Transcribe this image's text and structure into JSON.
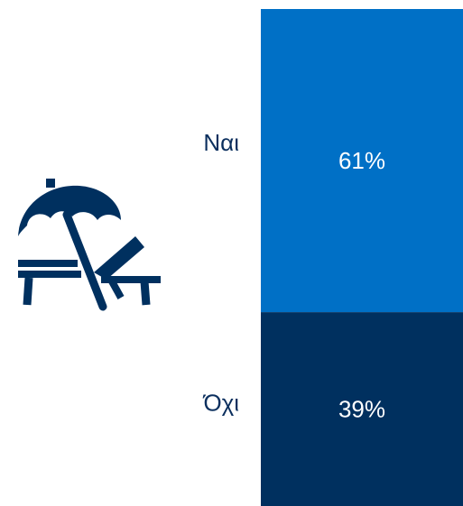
{
  "chart_data": {
    "type": "bar",
    "layout": "stacked-vertical-100",
    "categories": [
      "Ναι",
      "Όχι"
    ],
    "values": [
      61,
      39
    ],
    "value_labels": [
      "61%",
      "39%"
    ],
    "colors": [
      "#0070c6",
      "#00305f"
    ],
    "title": "",
    "xlabel": "",
    "ylabel": "",
    "ylim": [
      0,
      100
    ],
    "grid": false,
    "legend": "none"
  },
  "icon": {
    "name": "beach-umbrella-lounger-icon",
    "color": "#00305f"
  }
}
